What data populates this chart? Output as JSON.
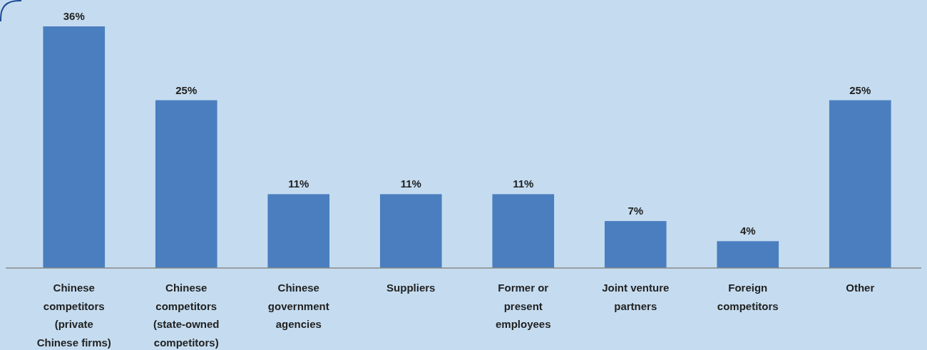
{
  "chart_data": {
    "type": "bar",
    "categories": [
      "Chinese competitors (private Chinese firms)",
      "Chinese competitors (state-owned competitors)",
      "Chinese government agencies",
      "Suppliers",
      "Former or present employees",
      "Joint venture partners",
      "Foreign competitors",
      "Other"
    ],
    "values": [
      36,
      25,
      11,
      11,
      11,
      7,
      4,
      25
    ],
    "color": "#4a7ebf",
    "value_labels": [
      "36%",
      "25%",
      "11%",
      "11%",
      "11%",
      "7%",
      "4%",
      "25%"
    ]
  }
}
